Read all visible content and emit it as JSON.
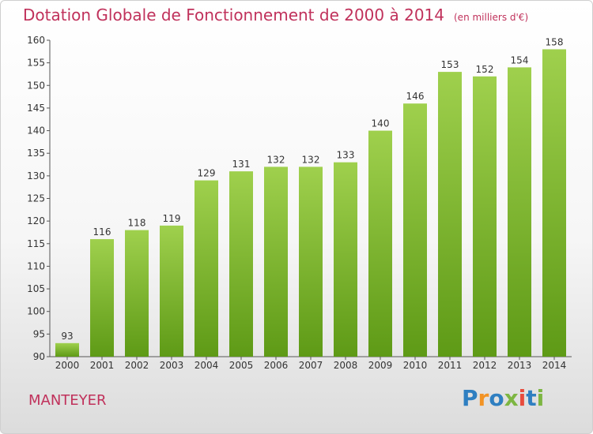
{
  "title": "Dotation Globale de Fonctionnement de 2000 à 2014",
  "subtitle": "(en milliers d'€)",
  "commune": "MANTEYER",
  "logo": {
    "text": "Proxiti",
    "colors": [
      "#2f7fc1",
      "#f29325",
      "#2f7fc1",
      "#7db642",
      "#e84c3d",
      "#2f7fc1",
      "#7db642"
    ]
  },
  "colors": {
    "bar_light": "#9fd04d",
    "bar_dark": "#5e9a16",
    "title": "#c0315b"
  },
  "chart_data": {
    "type": "bar",
    "categories": [
      "2000",
      "2001",
      "2002",
      "2003",
      "2004",
      "2005",
      "2006",
      "2007",
      "2008",
      "2009",
      "2010",
      "2011",
      "2012",
      "2013",
      "2014"
    ],
    "values": [
      93,
      116,
      118,
      119,
      129,
      131,
      132,
      132,
      133,
      140,
      146,
      153,
      152,
      154,
      158
    ],
    "ylim": [
      90,
      160
    ],
    "yticks": [
      90,
      95,
      100,
      105,
      110,
      115,
      120,
      125,
      130,
      135,
      140,
      145,
      150,
      155,
      160
    ],
    "grid": false
  }
}
